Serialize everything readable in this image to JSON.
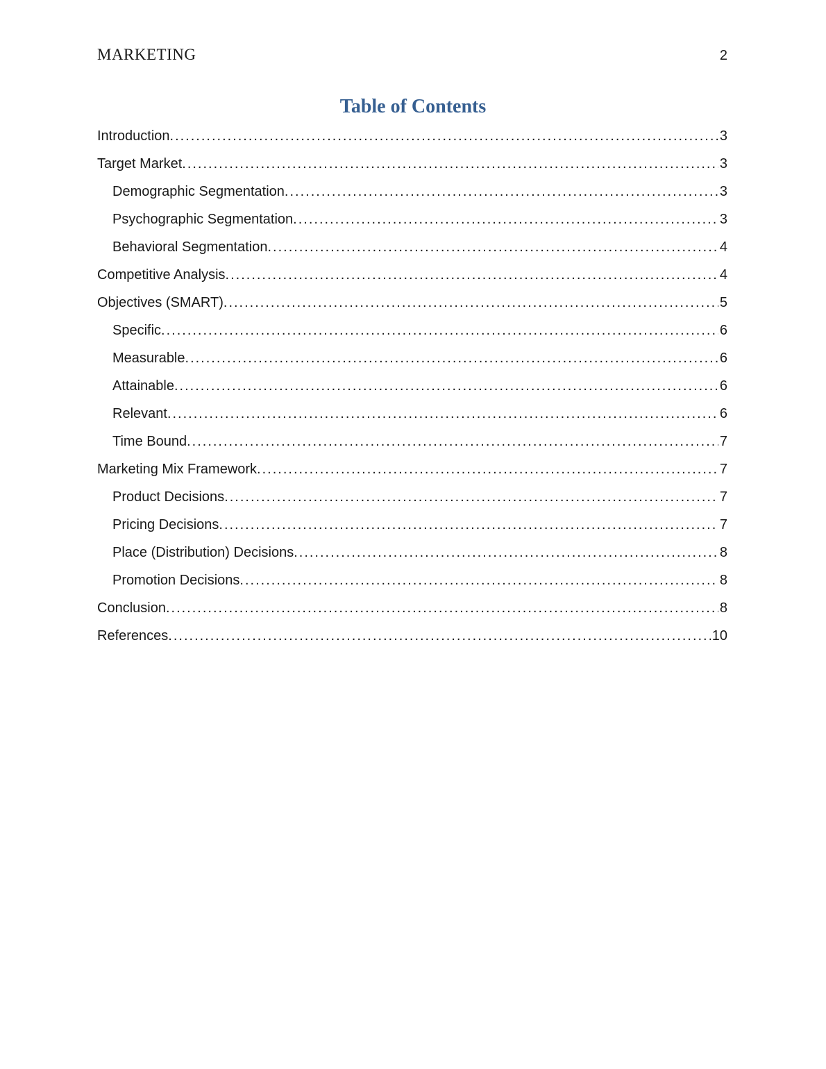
{
  "header": {
    "running_head": "MARKETING",
    "page_number": "2"
  },
  "title": "Table of Contents",
  "colors": {
    "title_blue": "#365F91",
    "body_text": "#1A1A1A"
  },
  "toc": {
    "leader_dot": ".",
    "entries": [
      {
        "label": "Introduction",
        "page": "3",
        "level": 1
      },
      {
        "label": "Target Market",
        "page": "3",
        "level": 1
      },
      {
        "label": "Demographic Segmentation",
        "page": "3",
        "level": 2
      },
      {
        "label": "Psychographic Segmentation",
        "page": "3",
        "level": 2
      },
      {
        "label": "Behavioral Segmentation",
        "page": "4",
        "level": 2
      },
      {
        "label": "Competitive Analysis",
        "page": "4",
        "level": 1
      },
      {
        "label": "Objectives (SMART)",
        "page": "5",
        "level": 1
      },
      {
        "label": "Specific",
        "page": "6",
        "level": 2
      },
      {
        "label": "Measurable",
        "page": "6",
        "level": 2
      },
      {
        "label": "Attainable",
        "page": "6",
        "level": 2
      },
      {
        "label": "Relevant",
        "page": "6",
        "level": 2
      },
      {
        "label": "Time Bound",
        "page": "7",
        "level": 2
      },
      {
        "label": "Marketing Mix Framework",
        "page": "7",
        "level": 1
      },
      {
        "label": "Product Decisions",
        "page": "7",
        "level": 2
      },
      {
        "label": "Pricing Decisions",
        "page": "7",
        "level": 2
      },
      {
        "label": "Place (Distribution) Decisions",
        "page": "8",
        "level": 2
      },
      {
        "label": "Promotion Decisions",
        "page": "8",
        "level": 2
      },
      {
        "label": "Conclusion",
        "page": "8",
        "level": 1
      },
      {
        "label": "References",
        "page": "10",
        "level": 1
      }
    ]
  }
}
